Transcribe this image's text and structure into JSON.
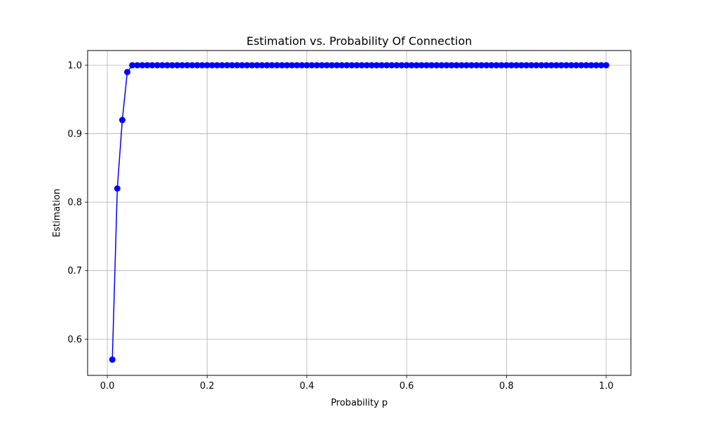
{
  "chart_data": {
    "type": "line",
    "title": "Estimation vs. Probability Of Connection",
    "xlabel": "Probability p",
    "ylabel": "Estimation",
    "xlim": [
      -0.0395,
      1.0495
    ],
    "ylim": [
      0.547,
      1.0215
    ],
    "xticks": [
      0.0,
      0.2,
      0.4,
      0.6,
      0.8,
      1.0
    ],
    "xtick_labels": [
      "0.0",
      "0.2",
      "0.4",
      "0.6",
      "0.8",
      "1.0"
    ],
    "yticks": [
      0.6,
      0.7,
      0.8,
      0.9,
      1.0
    ],
    "ytick_labels": [
      "0.6",
      "0.7",
      "0.8",
      "0.9",
      "1.0"
    ],
    "grid": true,
    "series": [
      {
        "color": "#0000ff",
        "marker": "circle",
        "x_start": 0.01,
        "x_step": 0.01,
        "x_end": 1.0,
        "y_head": [
          0.57,
          0.82,
          0.92,
          0.99
        ],
        "y_tail_value": 1.0
      }
    ]
  }
}
